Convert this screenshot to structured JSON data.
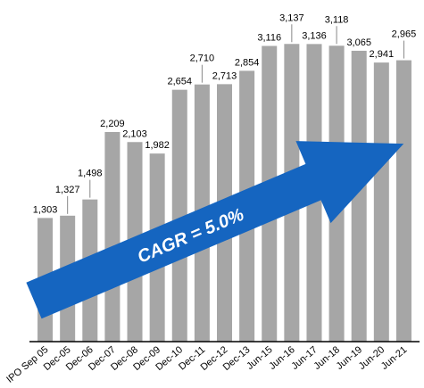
{
  "chart_data": {
    "type": "bar",
    "categories": [
      "IPO Sep 05",
      "Dec-05",
      "Dec-06",
      "Dec-07",
      "Dec-08",
      "Dec-09",
      "Dec-10",
      "Dec-11",
      "Dec-12",
      "Dec-13",
      "Jun-15",
      "Jun-16",
      "Jun-17",
      "Jun-18",
      "Jun-19",
      "Jun-20",
      "Jun-21"
    ],
    "values": [
      1303,
      1327,
      1498,
      2209,
      2103,
      1982,
      2654,
      2710,
      2713,
      2854,
      3116,
      3137,
      3136,
      3118,
      3065,
      2941,
      2965
    ],
    "value_labels": [
      "1,303",
      "1,327",
      "1,498",
      "2,209",
      "2,103",
      "1,982",
      "2,654",
      "2,710",
      "2,713",
      "2,854",
      "3,116",
      "3,137",
      "3,136",
      "3,118",
      "3,065",
      "2,941",
      "2,965"
    ],
    "color": "#a6a6a6",
    "ylim": [
      0,
      3600
    ],
    "annotation": "CAGR = 5.0%"
  }
}
